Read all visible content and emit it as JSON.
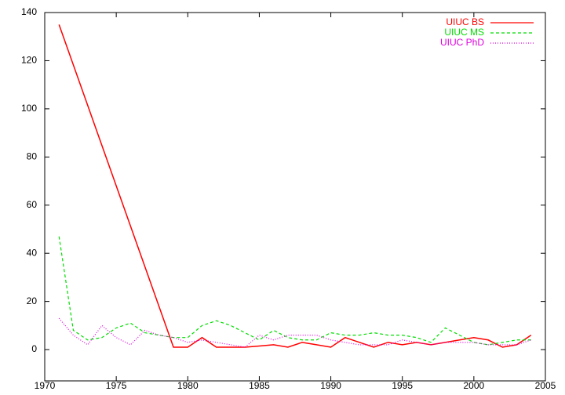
{
  "chart_data": {
    "type": "line",
    "series": [
      {
        "name": "UIUC BS",
        "color": "#ff0000",
        "style": "solid",
        "x": [
          1971,
          1979,
          1980,
          1981,
          1982,
          1983,
          1984,
          1985,
          1986,
          1987,
          1988,
          1989,
          1990,
          1991,
          1992,
          1993,
          1994,
          1995,
          1996,
          1997,
          1998,
          1999,
          2000,
          2001,
          2002,
          2003,
          2004
        ],
        "values": [
          135,
          1,
          1,
          5,
          1,
          1,
          1,
          1.5,
          2,
          1,
          3,
          2,
          1,
          5,
          3,
          1,
          3,
          2,
          3,
          2,
          3,
          4,
          5,
          4,
          1,
          2,
          6
        ]
      },
      {
        "name": "UIUC MS",
        "color": "#00dd00",
        "style": "dashed",
        "x": [
          1971,
          1972,
          1973,
          1974,
          1975,
          1976,
          1977,
          1978,
          1979,
          1980,
          1981,
          1982,
          1983,
          1984,
          1985,
          1986,
          1987,
          1988,
          1989,
          1990,
          1991,
          1992,
          1993,
          1994,
          1995,
          1996,
          1997,
          1998,
          1999,
          2000,
          2001,
          2002,
          2003,
          2004
        ],
        "values": [
          47,
          8,
          4,
          5,
          9,
          11,
          7,
          6,
          5,
          5,
          10,
          12,
          10,
          7,
          4,
          8,
          5,
          4,
          4,
          7,
          6,
          6,
          7,
          6,
          6,
          5,
          3,
          9,
          6,
          3,
          2,
          3,
          4,
          4
        ]
      },
      {
        "name": "UIUC PhD",
        "color": "#dd00dd",
        "style": "dotted",
        "x": [
          1971,
          1972,
          1973,
          1974,
          1975,
          1976,
          1977,
          1978,
          1979,
          1980,
          1981,
          1982,
          1983,
          1984,
          1985,
          1986,
          1987,
          1988,
          1989,
          1990,
          1991,
          1992,
          1993,
          1994,
          1995,
          1996,
          1997,
          1998,
          1999,
          2000,
          2001,
          2002,
          2003,
          2004
        ],
        "values": [
          13,
          6,
          2,
          10,
          5,
          2,
          8,
          6,
          5,
          3,
          4,
          3,
          2,
          1,
          6,
          4,
          6,
          6,
          6,
          4,
          3,
          2,
          2,
          2,
          4,
          3,
          2,
          3,
          3,
          3,
          2,
          2,
          2,
          4
        ]
      }
    ],
    "xlim": [
      1970,
      2005
    ],
    "xticks": [
      1970,
      1975,
      1980,
      1985,
      1990,
      1995,
      2000,
      2005
    ],
    "ylim": [
      -13,
      140
    ],
    "yticks": [
      0,
      20,
      40,
      60,
      80,
      100,
      120,
      140
    ],
    "legend": "top-right"
  }
}
